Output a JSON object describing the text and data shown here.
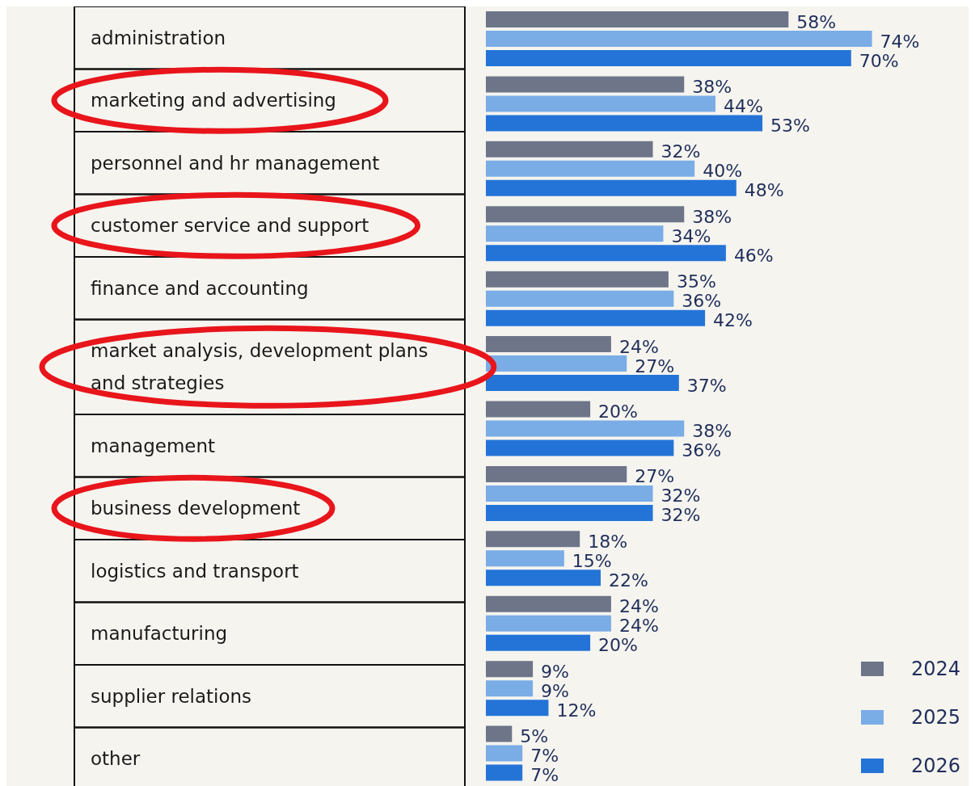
{
  "chart_data": {
    "type": "bar",
    "orientation": "horizontal",
    "categories": [
      "administration",
      "marketing and advertising",
      "personnel and hr management",
      "customer service and support",
      "finance and accounting",
      "market analysis, development plans and strategies",
      "management",
      "business development",
      "logistics and transport",
      "manufacturing",
      "supplier relations",
      "other"
    ],
    "series": [
      {
        "name": "2024",
        "color": "#6e7589",
        "values": [
          58,
          38,
          32,
          38,
          35,
          24,
          20,
          27,
          18,
          24,
          9,
          5
        ],
        "value_labels": [
          "58%",
          "38%",
          "32%",
          "38%",
          "35%",
          "24%",
          "20%",
          "27%",
          "18%",
          "24%",
          "9%",
          "5%"
        ]
      },
      {
        "name": "2025",
        "color": "#7aace6",
        "values": [
          74,
          44,
          40,
          34,
          36,
          27,
          38,
          32,
          15,
          24,
          9,
          7
        ],
        "value_labels": [
          "74%",
          "44%",
          "40%",
          "34%",
          "36%",
          "27%",
          "38%",
          "32%",
          "15%",
          "24%",
          "9%",
          "7%"
        ]
      },
      {
        "name": "2026",
        "color": "#2474d8",
        "values": [
          70,
          53,
          48,
          46,
          42,
          37,
          36,
          32,
          22,
          20,
          12,
          7
        ],
        "value_labels": [
          "70%",
          "53%",
          "48%",
          "46%",
          "42%",
          "37%",
          "36%",
          "32%",
          "22%",
          "20%",
          "12%",
          "7%"
        ]
      }
    ],
    "legend": "bottom right"
  }
}
